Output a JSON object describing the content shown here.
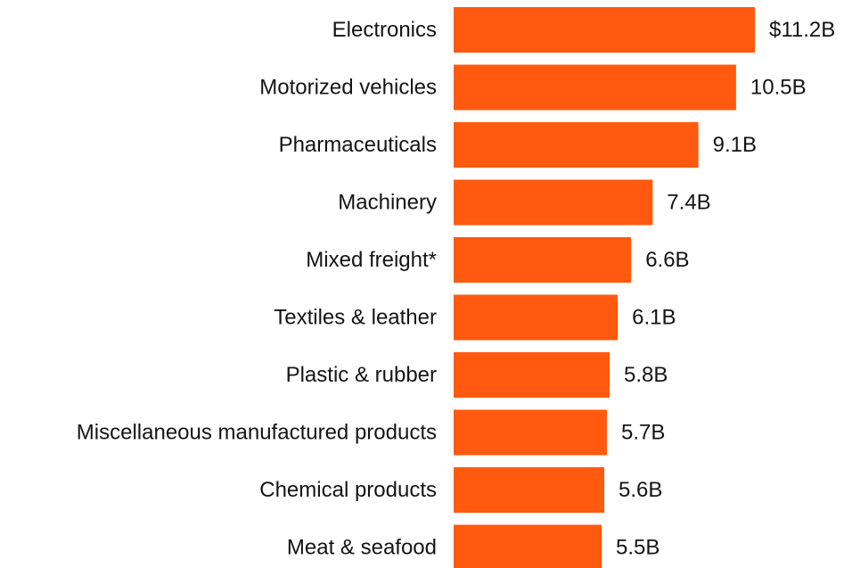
{
  "chart_data": {
    "type": "bar",
    "orientation": "horizontal",
    "categories": [
      "Electronics",
      "Motorized vehicles",
      "Pharmaceuticals",
      "Machinery",
      "Mixed freight*",
      "Textiles & leather",
      "Plastic & rubber",
      "Miscellaneous manufactured products",
      "Chemical products",
      "Meat & seafood"
    ],
    "values": [
      11.2,
      10.5,
      9.1,
      7.4,
      6.6,
      6.1,
      5.8,
      5.7,
      5.6,
      5.5
    ],
    "data_labels": [
      "$11.2B",
      "10.5B",
      "9.1B",
      "7.4B",
      "6.6B",
      "6.1B",
      "5.8B",
      "5.7B",
      "5.6B",
      "5.5B"
    ],
    "title": "",
    "xlabel": "",
    "ylabel": "",
    "xlim": [
      0,
      11.2
    ],
    "grid": false,
    "legend": "none",
    "bar_color": "#ff5a0f"
  }
}
